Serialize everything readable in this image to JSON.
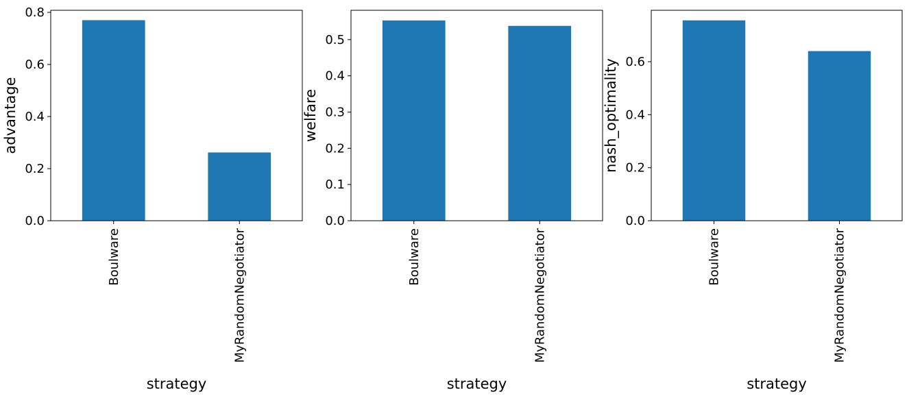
{
  "chart_data": [
    {
      "type": "bar",
      "categories": [
        "Boulware",
        "MyRandomNegotiator"
      ],
      "values": [
        0.77,
        0.262
      ],
      "xlabel": "strategy",
      "ylabel": "advantage",
      "ylim": [
        0,
        0.808
      ],
      "yticks": [
        0.0,
        0.2,
        0.4,
        0.6,
        0.8
      ],
      "ytick_labels": [
        "0.0",
        "0.2",
        "0.4",
        "0.6",
        "0.8"
      ],
      "bar_color": "#1f77b4",
      "grid": false
    },
    {
      "type": "bar",
      "categories": [
        "Boulware",
        "MyRandomNegotiator"
      ],
      "values": [
        0.553,
        0.538
      ],
      "xlabel": "strategy",
      "ylabel": "welfare",
      "ylim": [
        0,
        0.581
      ],
      "yticks": [
        0.0,
        0.1,
        0.2,
        0.3,
        0.4,
        0.5
      ],
      "ytick_labels": [
        "0.0",
        "0.1",
        "0.2",
        "0.3",
        "0.4",
        "0.5"
      ],
      "bar_color": "#1f77b4",
      "grid": false
    },
    {
      "type": "bar",
      "categories": [
        "Boulware",
        "MyRandomNegotiator"
      ],
      "values": [
        0.756,
        0.64
      ],
      "xlabel": "strategy",
      "ylabel": "nash_optimality",
      "ylim": [
        0,
        0.794
      ],
      "yticks": [
        0.0,
        0.2,
        0.4,
        0.6
      ],
      "ytick_labels": [
        "0.0",
        "0.2",
        "0.4",
        "0.6"
      ],
      "bar_color": "#1f77b4",
      "grid": false
    }
  ]
}
